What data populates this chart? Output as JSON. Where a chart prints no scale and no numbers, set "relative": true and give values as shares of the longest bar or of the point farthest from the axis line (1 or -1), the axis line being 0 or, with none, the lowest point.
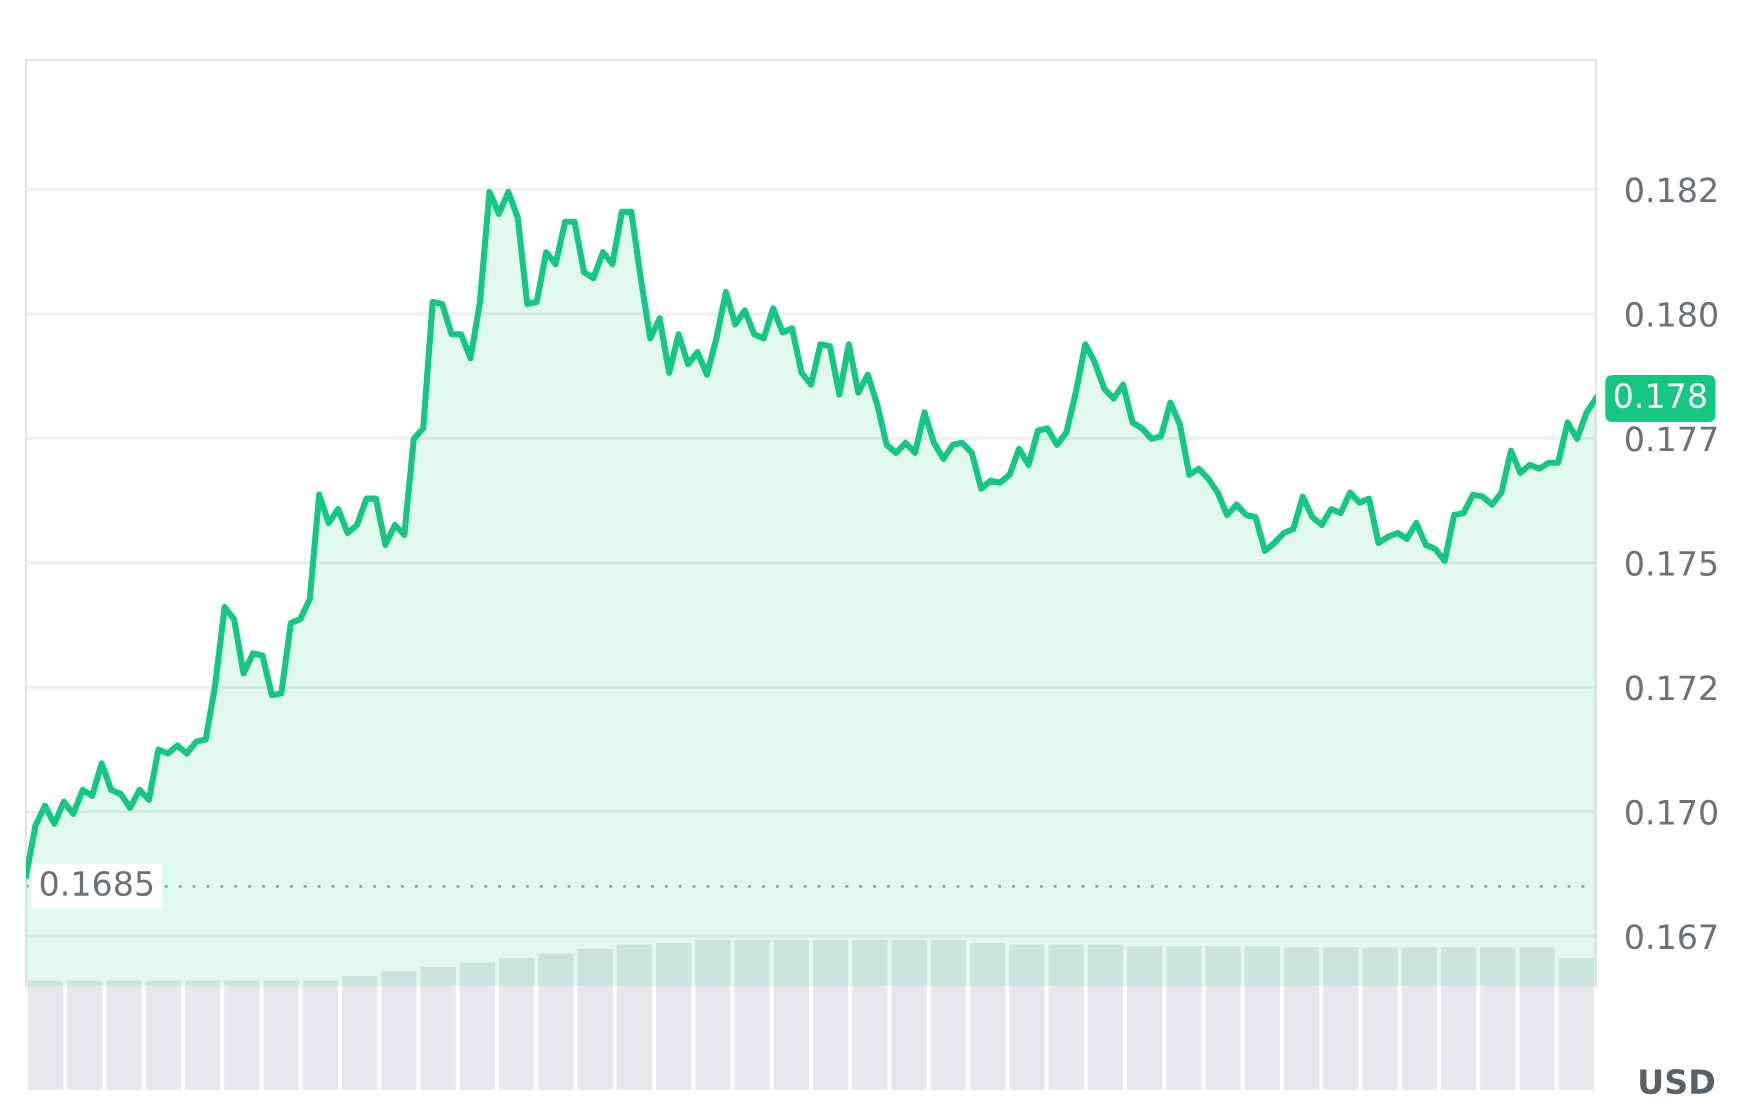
{
  "chart_data": [
    {
      "type": "area",
      "color": "#16c784",
      "grid": "y",
      "tick_labels": "y",
      "ylim": [
        0.1665,
        0.1851
      ],
      "yticks": [
        {
          "value": 0.1675,
          "label": "0.167"
        },
        {
          "value": 0.17,
          "label": "0.170"
        },
        {
          "value": 0.1725,
          "label": "0.172"
        },
        {
          "value": 0.175,
          "label": "0.175"
        },
        {
          "value": 0.1775,
          "label": "0.177"
        },
        {
          "value": 0.18,
          "label": "0.180"
        },
        {
          "value": 0.1825,
          "label": "0.182"
        }
      ],
      "ref_lines": [
        {
          "axis": "y",
          "value": 0.1685,
          "label": "0.1685",
          "color": "#9aa0a8",
          "line_style": "dotted"
        }
      ],
      "annotations": [
        "0.178",
        "USD"
      ],
      "categories": [
        null,
        null,
        null,
        null,
        null,
        null,
        null,
        null,
        null,
        null,
        null,
        null,
        null,
        null,
        null,
        null,
        null,
        null,
        null,
        null,
        null,
        null,
        null,
        null,
        null,
        null,
        null,
        null,
        null,
        null,
        null,
        null,
        null,
        null,
        null,
        null,
        null,
        null,
        null,
        null,
        null,
        null,
        null,
        null,
        null,
        null,
        null,
        null,
        null,
        null,
        null,
        null,
        null,
        null,
        null,
        null,
        null,
        null,
        null,
        null,
        null,
        null,
        null,
        null,
        null,
        null,
        null,
        null,
        null,
        null,
        null,
        null,
        null,
        null,
        null,
        null,
        null,
        null,
        null,
        null,
        null,
        null,
        null,
        null,
        null,
        null,
        null,
        null,
        null,
        null,
        null,
        null,
        null,
        null,
        null,
        null,
        null,
        null,
        null,
        null,
        null,
        null,
        null,
        null,
        null,
        null,
        null,
        null,
        null,
        null,
        null,
        null,
        null,
        null,
        null,
        null,
        null,
        null,
        null,
        null,
        null,
        null,
        null,
        null,
        null,
        null,
        null,
        null,
        null,
        null,
        null,
        null,
        null,
        null,
        null,
        null,
        null,
        null,
        null,
        null,
        null,
        null,
        null,
        null,
        null,
        null,
        null,
        null,
        null,
        null,
        null,
        null,
        null,
        null,
        null,
        null,
        null,
        null,
        null,
        null,
        null,
        null,
        null,
        null,
        null,
        null,
        null
      ],
      "values": [
        0.16871,
        0.16972,
        0.17012,
        0.16976,
        0.1702,
        0.16996,
        0.17044,
        0.17032,
        0.17097,
        0.17044,
        0.17036,
        0.17008,
        0.17044,
        0.17024,
        0.17125,
        0.17117,
        0.17133,
        0.17117,
        0.17141,
        0.17145,
        0.17254,
        0.17411,
        0.17387,
        0.17278,
        0.17318,
        0.17314,
        0.17234,
        0.17238,
        0.17379,
        0.17387,
        0.17427,
        0.17637,
        0.1758,
        0.17608,
        0.1756,
        0.17576,
        0.17629,
        0.17629,
        0.17536,
        0.17576,
        0.17556,
        0.17749,
        0.1777,
        0.18024,
        0.1802,
        0.17959,
        0.17959,
        0.17911,
        0.18024,
        0.18245,
        0.18201,
        0.18245,
        0.18193,
        0.1802,
        0.18024,
        0.18124,
        0.181,
        0.18185,
        0.18185,
        0.18084,
        0.18072,
        0.18124,
        0.181,
        0.18205,
        0.18205,
        0.18072,
        0.17951,
        0.17991,
        0.17882,
        0.17959,
        0.17899,
        0.17923,
        0.17878,
        0.17951,
        0.18044,
        0.17979,
        0.18007,
        0.17959,
        0.17951,
        0.18011,
        0.17963,
        0.17971,
        0.17882,
        0.17858,
        0.17939,
        0.17935,
        0.17838,
        0.17939,
        0.17842,
        0.17878,
        0.17818,
        0.17737,
        0.17721,
        0.17741,
        0.17721,
        0.17802,
        0.17741,
        0.17709,
        0.17737,
        0.17741,
        0.17721,
        0.17649,
        0.17665,
        0.17661,
        0.17677,
        0.17729,
        0.17697,
        0.17766,
        0.1777,
        0.17737,
        0.17762,
        0.17842,
        0.17939,
        0.17903,
        0.1785,
        0.1783,
        0.17858,
        0.17782,
        0.1777,
        0.17749,
        0.17754,
        0.17822,
        0.17778,
        0.17677,
        0.17689,
        0.17669,
        0.17641,
        0.17596,
        0.17617,
        0.17596,
        0.17592,
        0.17524,
        0.1754,
        0.1756,
        0.17568,
        0.17633,
        0.17592,
        0.17576,
        0.17608,
        0.176,
        0.17641,
        0.17621,
        0.17629,
        0.1754,
        0.17552,
        0.1756,
        0.17548,
        0.1758,
        0.17536,
        0.17528,
        0.17504,
        0.17596,
        0.176,
        0.17637,
        0.17633,
        0.17617,
        0.17641,
        0.17725,
        0.17681,
        0.17697,
        0.17689,
        0.17701,
        0.17701,
        0.17782,
        0.17749,
        0.17802,
        0.1783
      ]
    },
    {
      "type": "bar",
      "relative": true,
      "tick_labels": false,
      "color": "#e6e8ec",
      "categories": [
        null,
        null,
        null,
        null,
        null,
        null,
        null,
        null,
        null,
        null,
        null,
        null,
        null,
        null,
        null,
        null,
        null,
        null,
        null,
        null,
        null,
        null,
        null,
        null,
        null,
        null,
        null,
        null,
        null,
        null,
        null,
        null,
        null,
        null,
        null,
        null,
        null,
        null,
        null,
        null
      ],
      "values": [
        0.73,
        0.73,
        0.73,
        0.73,
        0.73,
        0.73,
        0.73,
        0.73,
        0.76,
        0.79,
        0.82,
        0.85,
        0.88,
        0.91,
        0.94,
        0.97,
        0.98,
        1,
        1,
        1,
        1,
        1,
        1,
        1,
        0.98,
        0.97,
        0.97,
        0.97,
        0.96,
        0.96,
        0.96,
        0.96,
        0.95,
        0.95,
        0.95,
        0.95,
        0.95,
        0.95,
        0.95,
        0.88
      ]
    }
  ]
}
